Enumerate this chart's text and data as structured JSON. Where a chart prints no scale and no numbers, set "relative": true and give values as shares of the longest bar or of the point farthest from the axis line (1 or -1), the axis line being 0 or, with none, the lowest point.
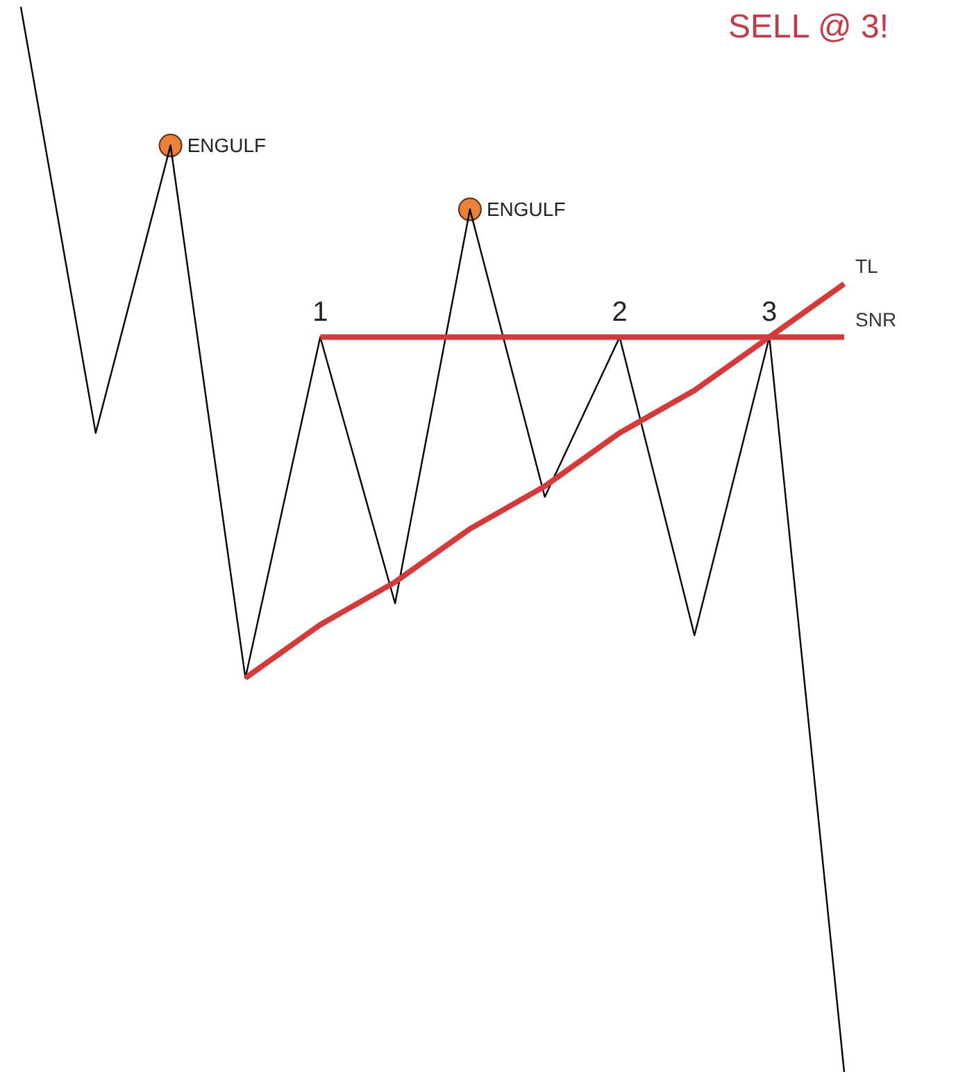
{
  "chart_data": {
    "type": "line",
    "relative": true,
    "title": "SELL @ 3!",
    "categories": [
      null,
      null,
      null,
      null,
      null,
      null,
      null,
      null,
      null,
      null,
      null,
      null
    ],
    "series": [
      {
        "color": "#000000",
        "marker": "none",
        "values": [
          1,
          0.6,
          0.87,
          0.37,
          0.69,
          0.44,
          0.81,
          0.54,
          0.69,
          0.41,
          0.69,
          0
        ]
      },
      {
        "name": "SNR",
        "color": "#d43a3a",
        "marker": "none",
        "values": [
          null,
          null,
          null,
          null,
          0.69,
          0.69,
          0.69,
          0.69,
          0.69,
          0.69,
          0.69,
          0.69
        ]
      },
      {
        "name": "TL",
        "color": "#d43a3a",
        "marker": "none",
        "values": [
          null,
          null,
          null,
          0.37,
          0.42,
          0.46,
          0.51,
          0.55,
          0.6,
          0.64,
          0.69,
          0.74
        ]
      }
    ],
    "annotations": [
      "ENGULF",
      "ENGULF",
      {
        "text": "1",
        "y": 0.69
      },
      {
        "text": "2",
        "y": 0.69
      },
      {
        "text": "3",
        "y": 0.69
      }
    ]
  }
}
